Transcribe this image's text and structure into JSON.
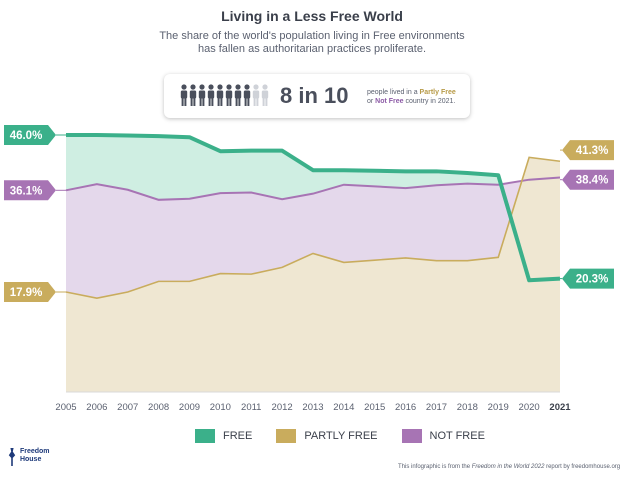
{
  "header": {
    "title": "Living in a Less Free World",
    "subtitle": "The share of the world's population living in Free environments has fallen as authoritarian practices proliferate."
  },
  "callout": {
    "stat": "8 in 10",
    "text_before": "people lived in a ",
    "partly_free": "Partly Free",
    "text_or": " or ",
    "not_free": "Not Free",
    "text_after": " country in 2021.",
    "people_total": 10,
    "people_highlighted": 8
  },
  "chart_data": {
    "type": "area",
    "x": [
      2005,
      2006,
      2007,
      2008,
      2009,
      2010,
      2011,
      2012,
      2013,
      2014,
      2015,
      2016,
      2017,
      2018,
      2019,
      2020,
      2021
    ],
    "x_tick_labels": [
      "2005",
      "2006",
      "2007",
      "2008",
      "2009",
      "2010",
      "2011",
      "2012",
      "2013",
      "2014",
      "2015",
      "2016",
      "2017",
      "2018",
      "2019",
      "2020",
      "2021"
    ],
    "series": [
      {
        "name": "FREE",
        "color": "#3bb08a",
        "values": [
          46.0,
          46.0,
          45.9,
          45.8,
          45.6,
          43.1,
          43.2,
          43.2,
          39.7,
          39.7,
          39.6,
          39.5,
          39.5,
          39.2,
          38.8,
          20.0,
          20.3
        ]
      },
      {
        "name": "PARTLY FREE",
        "color": "#c9ac5d",
        "values": [
          17.9,
          16.8,
          17.9,
          19.8,
          19.8,
          21.2,
          21.1,
          22.3,
          24.8,
          23.2,
          23.6,
          24.0,
          23.5,
          23.5,
          24.1,
          42.0,
          41.3
        ]
      },
      {
        "name": "NOT FREE",
        "color": "#a774b4",
        "values": [
          36.1,
          37.2,
          36.2,
          34.4,
          34.6,
          35.6,
          35.7,
          34.5,
          35.5,
          37.1,
          36.8,
          36.5,
          37.0,
          37.3,
          37.1,
          38.0,
          38.4
        ]
      }
    ],
    "labels": {
      "free_start": "46.0%",
      "free_end": "20.3%",
      "partly_start": "17.9%",
      "partly_end": "41.3%",
      "notfree_start": "36.1%",
      "notfree_end": "38.4%"
    },
    "ylim": [
      0,
      50
    ],
    "grid": false,
    "legend_position": "bottom"
  },
  "legend": [
    {
      "label": "FREE",
      "color": "#3bb08a"
    },
    {
      "label": "PARTLY FREE",
      "color": "#c9ac5d"
    },
    {
      "label": "NOT FREE",
      "color": "#a774b4"
    }
  ],
  "footer": {
    "logo_line1": "Freedom",
    "logo_line2": "House",
    "credit_before": "This infographic is from the ",
    "credit_italic": "Freedom in the World 2022",
    "credit_after": " report by freedomhouse.org"
  }
}
